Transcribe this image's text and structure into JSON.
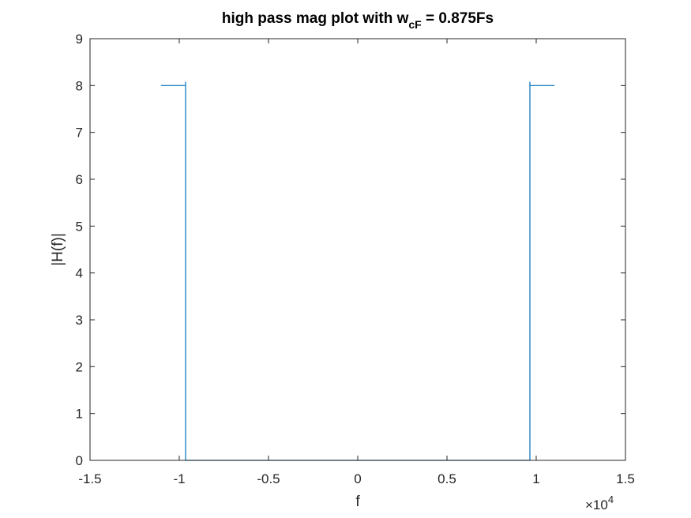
{
  "chart_data": {
    "type": "line",
    "title": {
      "prefix": "high pass mag plot with w",
      "subscript": "cF",
      "suffix": " = 0.875Fs"
    },
    "xlabel": "f",
    "ylabel": "|H(f)|",
    "x_exponent": {
      "base": "×10",
      "power": "4"
    },
    "xlim": [
      -1.5,
      1.5
    ],
    "ylim": [
      0,
      9
    ],
    "x_scale": 10000,
    "xticks": [
      -1.5,
      -1,
      -0.5,
      0,
      0.5,
      1,
      1.5
    ],
    "xtick_labels": [
      "-1.5",
      "-1",
      "-0.5",
      "0",
      "0.5",
      "1",
      "1.5"
    ],
    "yticks": [
      0,
      1,
      2,
      3,
      4,
      5,
      6,
      7,
      8,
      9
    ],
    "ytick_labels": [
      "0",
      "1",
      "2",
      "3",
      "4",
      "5",
      "6",
      "7",
      "8",
      "9"
    ],
    "grid": false,
    "series": [
      {
        "color": "#0072BD",
        "x": [
          -11025,
          -9647,
          -9647,
          -9647,
          9647,
          9647,
          9647,
          11025
        ],
        "y": [
          8,
          8,
          8.08,
          0,
          0,
          8.08,
          8,
          8
        ]
      }
    ]
  }
}
